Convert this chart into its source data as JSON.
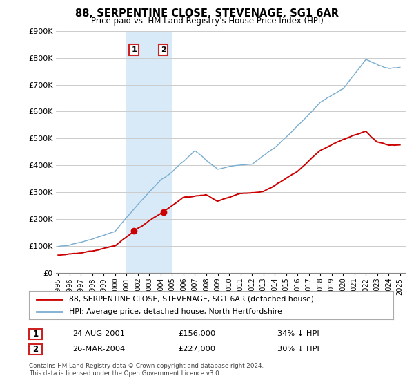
{
  "title": "88, SERPENTINE CLOSE, STEVENAGE, SG1 6AR",
  "subtitle": "Price paid vs. HM Land Registry's House Price Index (HPI)",
  "ylim": [
    0,
    900000
  ],
  "yticks": [
    0,
    100000,
    200000,
    300000,
    400000,
    500000,
    600000,
    700000,
    800000,
    900000
  ],
  "ytick_labels": [
    "£0",
    "£100K",
    "£200K",
    "£300K",
    "£400K",
    "£500K",
    "£600K",
    "£700K",
    "£800K",
    "£900K"
  ],
  "red_line_color": "#cc0000",
  "blue_line_color": "#7aadcf",
  "shaded_color": "#d8eaf7",
  "transaction1_year": 2001.65,
  "transaction1_price": 156000,
  "transaction1_date": "24-AUG-2001",
  "transaction1_hpi": "34% ↓ HPI",
  "transaction2_year": 2004.23,
  "transaction2_price": 227000,
  "transaction2_date": "26-MAR-2004",
  "transaction2_hpi": "30% ↓ HPI",
  "legend_red_label": "88, SERPENTINE CLOSE, STEVENAGE, SG1 6AR (detached house)",
  "legend_blue_label": "HPI: Average price, detached house, North Hertfordshire",
  "footnote_line1": "Contains HM Land Registry data © Crown copyright and database right 2024.",
  "footnote_line2": "This data is licensed under the Open Government Licence v3.0.",
  "background_color": "#ffffff",
  "grid_color": "#cccccc",
  "box_edge_color": "#cc2222",
  "xlim_left": 1994.8,
  "xlim_right": 2025.5
}
